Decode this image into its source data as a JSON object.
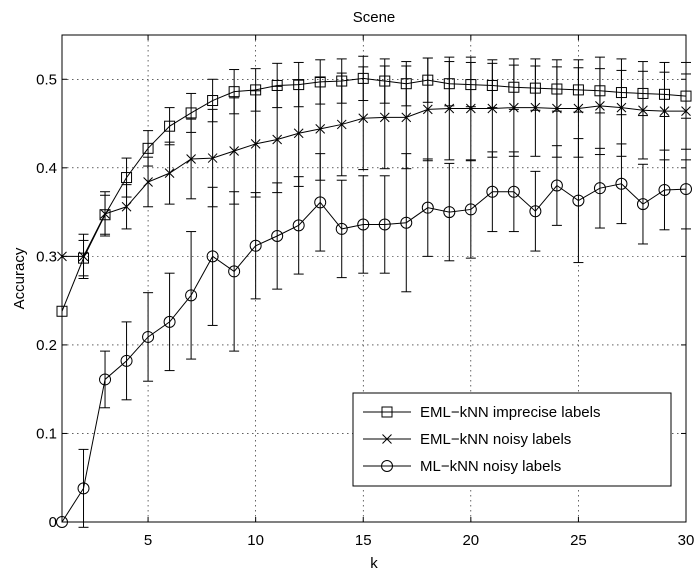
{
  "chart_data": {
    "type": "line",
    "title": "Scene",
    "xlabel": "k",
    "ylabel": "Accuracy",
    "xlim": [
      1,
      30
    ],
    "ylim": [
      0,
      0.55
    ],
    "xticks": [
      5,
      10,
      15,
      20,
      25,
      30
    ],
    "yticks": [
      0,
      0.1,
      0.2,
      0.3,
      0.4,
      0.5
    ],
    "ytick_labels": [
      "0",
      "0.1",
      "0.2",
      "0.3",
      "0.4",
      "0.5"
    ],
    "grid": true,
    "legend_position": "lower-right",
    "x": [
      1,
      2,
      3,
      4,
      5,
      6,
      7,
      8,
      9,
      10,
      11,
      12,
      13,
      14,
      15,
      16,
      17,
      18,
      19,
      20,
      21,
      22,
      23,
      24,
      25,
      26,
      27,
      28,
      29,
      30
    ],
    "series": [
      {
        "name": "EML−kNN imprecise labels",
        "marker": "square",
        "values": [
          0.238,
          0.298,
          0.347,
          0.389,
          0.422,
          0.447,
          0.462,
          0.476,
          0.486,
          0.488,
          0.493,
          0.494,
          0.497,
          0.498,
          0.501,
          0.498,
          0.495,
          0.499,
          0.495,
          0.494,
          0.493,
          0.491,
          0.49,
          0.489,
          0.488,
          0.487,
          0.485,
          0.484,
          0.483,
          0.481
        ],
        "error": [
          0,
          0.02,
          0.022,
          0.022,
          0.02,
          0.021,
          0.022,
          0.024,
          0.025,
          0.024,
          0.025,
          0.025,
          0.025,
          0.025,
          0.025,
          0.025,
          0.025,
          0.025,
          0.025,
          0.025,
          0.025,
          0.025,
          0.025,
          0.025,
          0.025,
          0.025,
          0.025,
          0.025,
          0.025,
          0.025
        ]
      },
      {
        "name": "EML−kNN noisy labels",
        "marker": "x",
        "values": [
          0.3,
          0.3,
          0.348,
          0.356,
          0.384,
          0.394,
          0.41,
          0.411,
          0.419,
          0.427,
          0.432,
          0.439,
          0.444,
          0.449,
          0.456,
          0.457,
          0.457,
          0.466,
          0.467,
          0.467,
          0.467,
          0.468,
          0.468,
          0.467,
          0.467,
          0.47,
          0.468,
          0.465,
          0.464,
          0.464
        ],
        "error": [
          0,
          0.025,
          0.025,
          0.025,
          0.028,
          0.035,
          0.045,
          0.055,
          0.06,
          0.06,
          0.06,
          0.06,
          0.058,
          0.058,
          0.058,
          0.058,
          0.058,
          0.058,
          0.058,
          0.058,
          0.055,
          0.055,
          0.055,
          0.055,
          0.055,
          0.055,
          0.055,
          0.055,
          0.055,
          0.055
        ]
      },
      {
        "name": "ML−kNN noisy labels",
        "marker": "circle",
        "values": [
          0,
          0.038,
          0.161,
          0.182,
          0.209,
          0.226,
          0.256,
          0.3,
          0.283,
          0.312,
          0.323,
          0.335,
          0.361,
          0.331,
          0.336,
          0.336,
          0.338,
          0.355,
          0.35,
          0.353,
          0.373,
          0.373,
          0.351,
          0.38,
          0.363,
          0.377,
          0.382,
          0.359,
          0.375,
          0.376
        ],
        "error": [
          0,
          0.044,
          0.032,
          0.044,
          0.05,
          0.055,
          0.072,
          0.078,
          0.09,
          0.06,
          0.06,
          0.055,
          0.055,
          0.055,
          0.055,
          0.055,
          0.078,
          0.055,
          0.055,
          0.055,
          0.045,
          0.045,
          0.045,
          0.045,
          0.07,
          0.045,
          0.045,
          0.045,
          0.045,
          0.045
        ]
      }
    ]
  }
}
